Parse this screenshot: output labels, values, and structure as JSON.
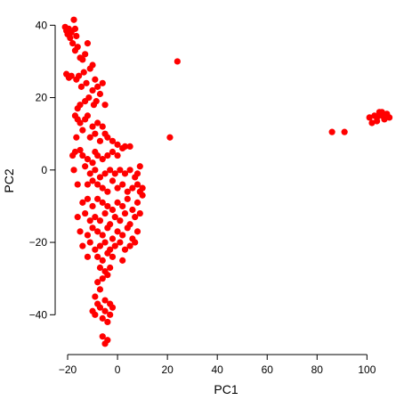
{
  "chart_data": {
    "type": "scatter",
    "title": "",
    "xlabel": "PC1",
    "ylabel": "PC2",
    "xlim": [
      -25,
      112
    ],
    "ylim": [
      -51,
      45
    ],
    "xticks": [
      -20,
      0,
      20,
      40,
      60,
      80,
      100
    ],
    "yticks": [
      -40,
      -20,
      0,
      20,
      40
    ],
    "grid": false,
    "point_color": "#ff0000",
    "series": [
      {
        "points": [
          [
            -21,
            39.5
          ],
          [
            -20.5,
            38.5
          ],
          [
            -20,
            37.5
          ],
          [
            -19.5,
            39
          ],
          [
            -19,
            36.5
          ],
          [
            -18.5,
            38
          ],
          [
            -17.5,
            41.5
          ],
          [
            -17,
            39
          ],
          [
            -16.5,
            37
          ],
          [
            -18,
            35
          ],
          [
            -16,
            34
          ],
          [
            -17,
            33
          ],
          [
            -15,
            31
          ],
          [
            -14,
            30.5
          ],
          [
            -13,
            32
          ],
          [
            -12,
            35
          ],
          [
            -11,
            28
          ],
          [
            -10,
            29
          ],
          [
            -13.5,
            27
          ],
          [
            -15.5,
            26
          ],
          [
            -16.5,
            25
          ],
          [
            -18.5,
            26
          ],
          [
            -19.5,
            25.5
          ],
          [
            -20.5,
            26.5
          ],
          [
            -14.5,
            23
          ],
          [
            -12.5,
            24
          ],
          [
            -10,
            22
          ],
          [
            -9,
            25
          ],
          [
            -8,
            23
          ],
          [
            -6,
            24
          ],
          [
            -11.5,
            20
          ],
          [
            -13,
            19
          ],
          [
            -15,
            18
          ],
          [
            -16,
            17
          ],
          [
            -9.5,
            18
          ],
          [
            -8.5,
            19
          ],
          [
            -7,
            21
          ],
          [
            -5,
            18
          ],
          [
            -17,
            15
          ],
          [
            -16,
            14
          ],
          [
            -15,
            13
          ],
          [
            -13,
            14
          ],
          [
            -12,
            15
          ],
          [
            -14,
            11
          ],
          [
            -10,
            12
          ],
          [
            -8,
            13
          ],
          [
            -6,
            12
          ],
          [
            -16.5,
            9
          ],
          [
            -11,
            9
          ],
          [
            -9,
            10
          ],
          [
            -7,
            8
          ],
          [
            -5,
            10
          ],
          [
            -4,
            9
          ],
          [
            -2,
            8
          ],
          [
            0,
            7
          ],
          [
            2,
            6
          ],
          [
            -18,
            4
          ],
          [
            -17,
            5
          ],
          [
            -15,
            5.5
          ],
          [
            -14,
            4
          ],
          [
            -12,
            3
          ],
          [
            -10,
            2
          ],
          [
            -9,
            5
          ],
          [
            -8,
            4
          ],
          [
            -6,
            3
          ],
          [
            -4,
            4
          ],
          [
            -2,
            5
          ],
          [
            0,
            4
          ],
          [
            3,
            6.5
          ],
          [
            5,
            6.5
          ],
          [
            -17.5,
            0
          ],
          [
            -13,
            1
          ],
          [
            -11,
            -1
          ],
          [
            -9,
            0
          ],
          [
            -7,
            -2
          ],
          [
            -5,
            -1
          ],
          [
            -3,
            0
          ],
          [
            -1,
            -1
          ],
          [
            1,
            0
          ],
          [
            3,
            -1
          ],
          [
            5,
            0
          ],
          [
            7,
            -2
          ],
          [
            8,
            -1
          ],
          [
            9,
            1
          ],
          [
            -16,
            -4
          ],
          [
            -12,
            -4
          ],
          [
            -10,
            -3
          ],
          [
            -8,
            -4
          ],
          [
            -6,
            -5
          ],
          [
            -4,
            -6
          ],
          [
            -2,
            -3
          ],
          [
            0,
            -5
          ],
          [
            2,
            -4
          ],
          [
            4,
            -6
          ],
          [
            6,
            -5
          ],
          [
            8,
            -4
          ],
          [
            9,
            -6
          ],
          [
            10,
            -5
          ],
          [
            -14,
            -9
          ],
          [
            -12,
            -8
          ],
          [
            -10,
            -10
          ],
          [
            -8,
            -8
          ],
          [
            -6,
            -9
          ],
          [
            -4,
            -10
          ],
          [
            -2,
            -11
          ],
          [
            0,
            -9
          ],
          [
            2,
            -10
          ],
          [
            4,
            -8
          ],
          [
            6,
            -11
          ],
          [
            8,
            -9
          ],
          [
            10,
            -7
          ],
          [
            -16,
            -13
          ],
          [
            -13,
            -12
          ],
          [
            -11,
            -14
          ],
          [
            -9,
            -13
          ],
          [
            -7,
            -14
          ],
          [
            -5,
            -12
          ],
          [
            -3,
            -15
          ],
          [
            -1,
            -13
          ],
          [
            1,
            -14
          ],
          [
            3,
            -12
          ],
          [
            5,
            -15
          ],
          [
            7,
            -13
          ],
          [
            9,
            -12
          ],
          [
            -15,
            -17
          ],
          [
            -12,
            -18
          ],
          [
            -10,
            -16
          ],
          [
            -8,
            -17
          ],
          [
            -6,
            -18
          ],
          [
            -4,
            -16
          ],
          [
            -2,
            -19
          ],
          [
            0,
            -17
          ],
          [
            2,
            -18
          ],
          [
            4,
            -16
          ],
          [
            6,
            -19
          ],
          [
            8,
            -17
          ],
          [
            -14,
            -21
          ],
          [
            -11,
            -20
          ],
          [
            -9,
            -22
          ],
          [
            -7,
            -21
          ],
          [
            -5,
            -20
          ],
          [
            -3,
            -22
          ],
          [
            -1,
            -21
          ],
          [
            1,
            -20
          ],
          [
            3,
            -22
          ],
          [
            5,
            -21
          ],
          [
            7,
            -20
          ],
          [
            -12,
            -24
          ],
          [
            -8,
            -24
          ],
          [
            -6,
            -25
          ],
          [
            -4,
            -23
          ],
          [
            -2,
            -24
          ],
          [
            2,
            -25
          ],
          [
            -7,
            -27
          ],
          [
            -5,
            -28
          ],
          [
            -3,
            -27
          ],
          [
            -6,
            -30
          ],
          [
            -4,
            -29
          ],
          [
            -8,
            -31
          ],
          [
            -7,
            -33
          ],
          [
            -9,
            -35
          ],
          [
            -8,
            -37
          ],
          [
            -10,
            -39
          ],
          [
            -9,
            -40
          ],
          [
            -7,
            -38
          ],
          [
            -6,
            -41
          ],
          [
            -5,
            -39
          ],
          [
            -4,
            -42
          ],
          [
            -3,
            -37
          ],
          [
            -2,
            -38
          ],
          [
            -5,
            -36
          ],
          [
            -3,
            -40
          ],
          [
            -6,
            -46
          ],
          [
            -5,
            -48
          ],
          [
            -4,
            -47
          ],
          [
            21,
            9
          ],
          [
            24,
            30
          ],
          [
            86,
            10.5
          ],
          [
            91,
            10.5
          ],
          [
            101,
            14.5
          ],
          [
            102,
            13
          ],
          [
            103,
            15
          ],
          [
            104,
            14.5
          ],
          [
            105,
            16
          ],
          [
            106,
            15
          ],
          [
            107,
            14
          ],
          [
            108,
            15.5
          ],
          [
            109,
            14.5
          ],
          [
            104,
            13.5
          ],
          [
            106,
            16
          ]
        ]
      }
    ]
  }
}
